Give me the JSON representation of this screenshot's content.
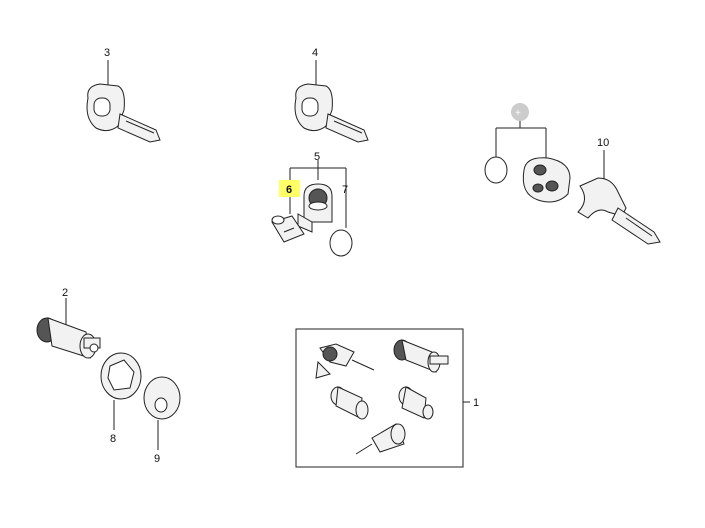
{
  "callouts": {
    "c1": "1",
    "c2": "2",
    "c3": "3",
    "c4": "4",
    "c5": "5",
    "c6": "6",
    "c7": "7",
    "c8": "8",
    "c9": "9",
    "c10": "10"
  },
  "colors": {
    "highlight": "#ffff66",
    "placeholder_marker": "#cccccc",
    "stroke": "#222222"
  }
}
